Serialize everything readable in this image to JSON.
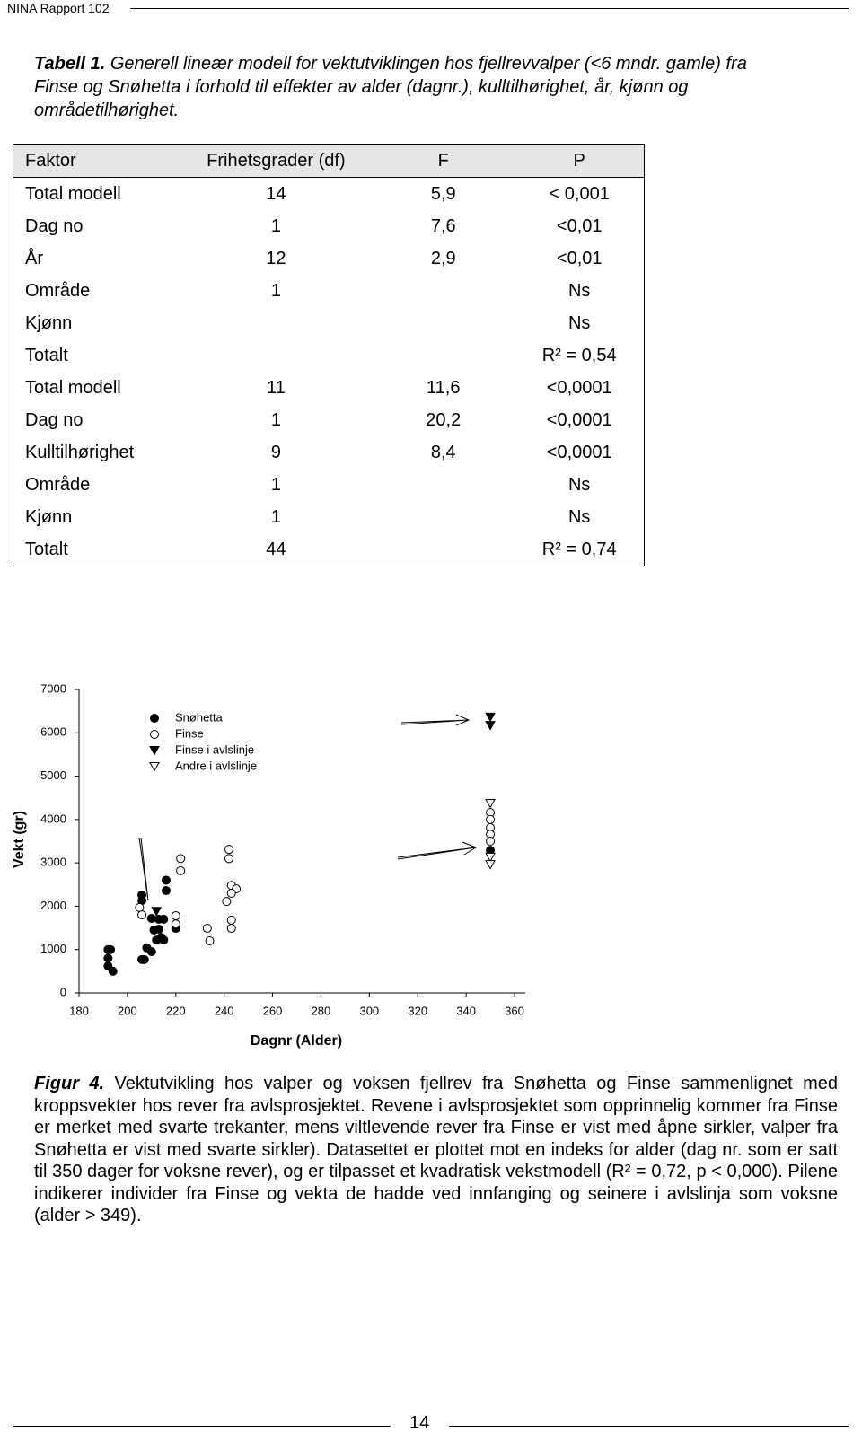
{
  "header": {
    "title": "NINA Rapport 102"
  },
  "table_caption": {
    "label": "Tabell 1.",
    "text": "Generell lineær modell for vektutviklingen hos fjellrevvalper (<6 mndr. gamle) fra Finse og Snøhetta i forhold til effekter av alder (dagnr.), kulltilhørighet, år, kjønn og områdetilhørighet."
  },
  "table": {
    "columns": [
      "Faktor",
      "Frihetsgrader (df)",
      "F",
      "P"
    ],
    "rows": [
      [
        "Total modell",
        "14",
        "5,9",
        "< 0,001"
      ],
      [
        "Dag no",
        "1",
        "7,6",
        "<0,01"
      ],
      [
        "År",
        "12",
        "2,9",
        "<0,01"
      ],
      [
        "Område",
        "1",
        null,
        "Ns"
      ],
      [
        "Kjønn",
        null,
        null,
        "Ns"
      ],
      [
        "Totalt",
        null,
        null,
        "R² = 0,54"
      ],
      [
        "Total modell",
        "11",
        "11,6",
        "<0,0001"
      ],
      [
        "Dag no",
        "1",
        "20,2",
        "<0,0001"
      ],
      [
        "Kulltilhørighet",
        "9",
        "8,4",
        "<0,0001"
      ],
      [
        "Område",
        "1",
        null,
        "Ns"
      ],
      [
        "Kjønn",
        "1",
        null,
        "Ns"
      ],
      [
        "Totalt",
        "44",
        null,
        "R² = 0,74"
      ]
    ]
  },
  "chart_data": {
    "type": "scatter",
    "x_label": "Dagnr (Alder)",
    "y_label": "Vekt (gr)",
    "xlim": [
      180,
      360
    ],
    "xticks": [
      180,
      200,
      220,
      240,
      260,
      280,
      300,
      320,
      340,
      360
    ],
    "ylim": [
      0,
      7000
    ],
    "yticks": [
      0,
      1000,
      2000,
      3000,
      4000,
      5000,
      6000,
      7000
    ],
    "legend": "upper-left",
    "series": [
      {
        "name": "Snøhetta",
        "color": "#000000",
        "marker": "filled-circle",
        "x": [
          192,
          193,
          192,
          192,
          194,
          206,
          207,
          208,
          210,
          206,
          206,
          216,
          216,
          210,
          211,
          213,
          215,
          213,
          214,
          212,
          215,
          220,
          350
        ],
        "values": [
          1000,
          1000,
          800,
          620,
          500,
          770,
          770,
          1040,
          950,
          2260,
          2130,
          2600,
          2360,
          1720,
          1450,
          1700,
          1700,
          1470,
          1280,
          1220,
          1220,
          1490,
          3290
        ]
      },
      {
        "name": "Finse",
        "color": "#000000",
        "marker": "open-circle",
        "x": [
          205,
          206,
          222,
          222,
          220,
          220,
          233,
          234,
          242,
          242,
          243,
          245,
          243,
          241,
          243,
          243,
          350,
          350,
          350,
          350,
          350
        ],
        "values": [
          1970,
          1800,
          3100,
          2820,
          1780,
          1590,
          1490,
          1200,
          3310,
          3100,
          2480,
          2400,
          2300,
          2110,
          1680,
          1490,
          4160,
          4000,
          3810,
          3660,
          3500
        ]
      },
      {
        "name": "Finse i avlslinje",
        "color": "#000000",
        "marker": "filled-triangle-down",
        "x": [
          212,
          350,
          350
        ],
        "values": [
          1880,
          6360,
          6170
        ]
      },
      {
        "name": "Andre i avlslinje",
        "color": "#000000",
        "marker": "open-triangle-down",
        "x": [
          350,
          350,
          350
        ],
        "values": [
          4370,
          3130,
          2960
        ]
      }
    ]
  },
  "figure_caption": {
    "label": "Figur 4.",
    "text": "Vektutvikling hos valper og voksen fjellrev fra Snøhetta og Finse sammenlignet med kroppsvekter hos rever fra avlsprosjektet. Revene i avlsprosjektet som opprinnelig kommer fra Finse er merket med svarte trekanter, mens viltlevende rever fra Finse er vist med åpne sirkler, valper fra Snøhetta er vist med svarte sirkler). Datasettet er plottet mot en indeks for alder (dag nr. som er satt til 350 dager for voksne rever), og er tilpasset et kvadratisk vekstmodell (R² = 0,72, p < 0,000). Pilene indikerer individer fra Finse og vekta de hadde ved innfanging og seinere i avlslinja som voksne (alder > 349)."
  },
  "footer": {
    "page": "14"
  }
}
